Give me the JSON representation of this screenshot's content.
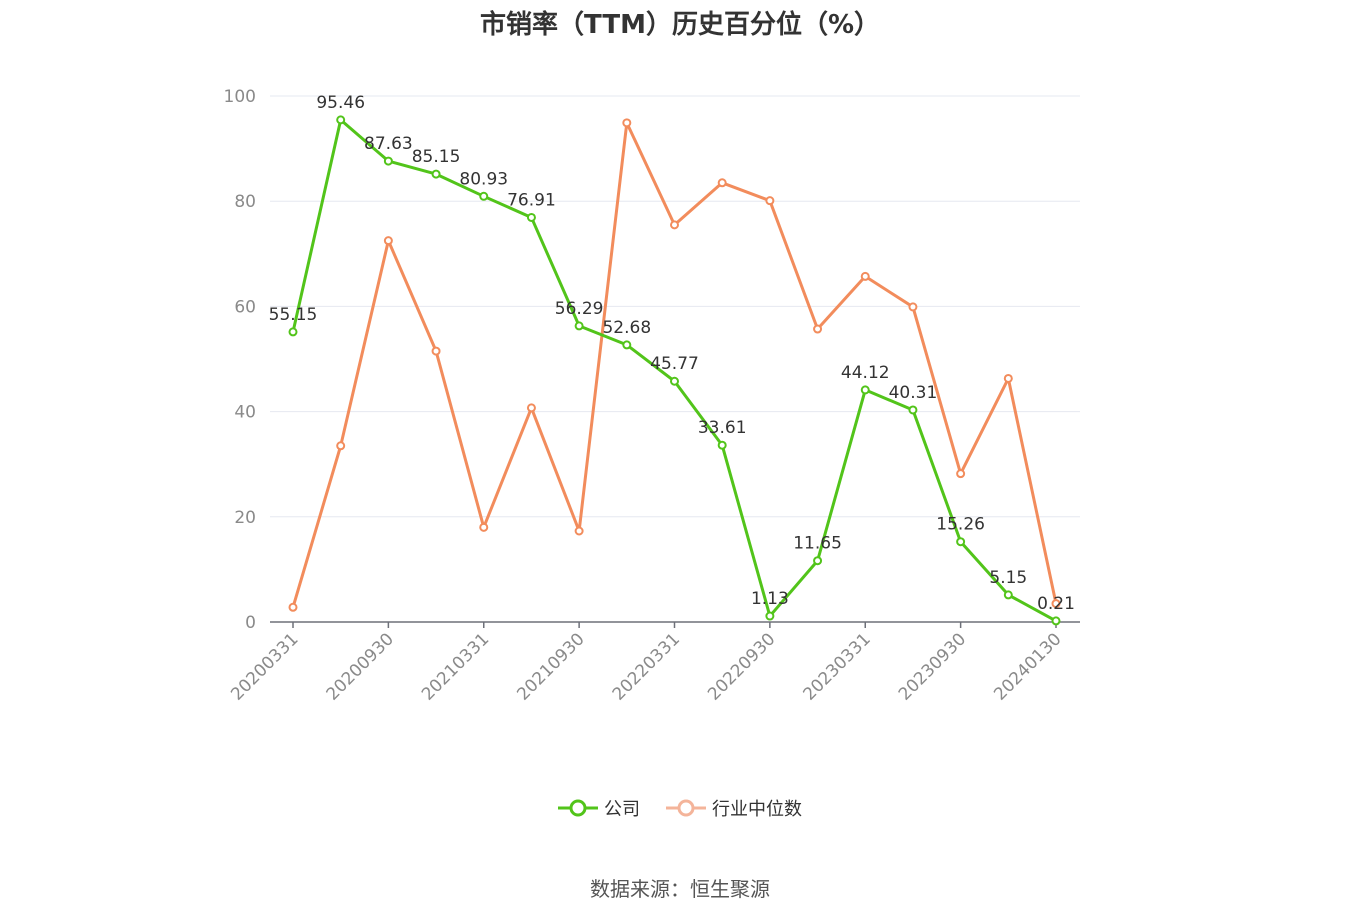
{
  "title": "市销率（TTM）历史百分位（%）",
  "source": "数据来源：恒生聚源",
  "chart_data": {
    "type": "line",
    "title": "市销率（TTM）历史百分位（%）",
    "xlabel": "",
    "ylabel": "",
    "ylim": [
      0,
      100
    ],
    "yticks": [
      0,
      20,
      40,
      60,
      80,
      100
    ],
    "grid": true,
    "legend_position": "bottom",
    "x_tick_labels": [
      "20200331",
      "20200930",
      "20210331",
      "20210930",
      "20220331",
      "20220930",
      "20230331",
      "20230930",
      "20240130"
    ],
    "x_tick_index": [
      0,
      2,
      4,
      6,
      8,
      10,
      12,
      14,
      16
    ],
    "series": [
      {
        "name": "公司",
        "color": "#52c41a",
        "show_labels": true,
        "values": [
          55.15,
          95.46,
          87.63,
          85.15,
          80.93,
          76.91,
          56.29,
          52.68,
          45.77,
          33.61,
          1.13,
          11.65,
          44.12,
          40.31,
          15.26,
          5.15,
          0.21
        ]
      },
      {
        "name": "行业中位数",
        "color": "#f28c5c",
        "show_labels": false,
        "values": [
          2.8,
          33.5,
          72.5,
          51.5,
          18.0,
          40.7,
          17.3,
          94.9,
          75.5,
          83.5,
          80.1,
          55.7,
          65.7,
          59.9,
          28.2,
          46.3,
          3.5
        ]
      }
    ]
  }
}
